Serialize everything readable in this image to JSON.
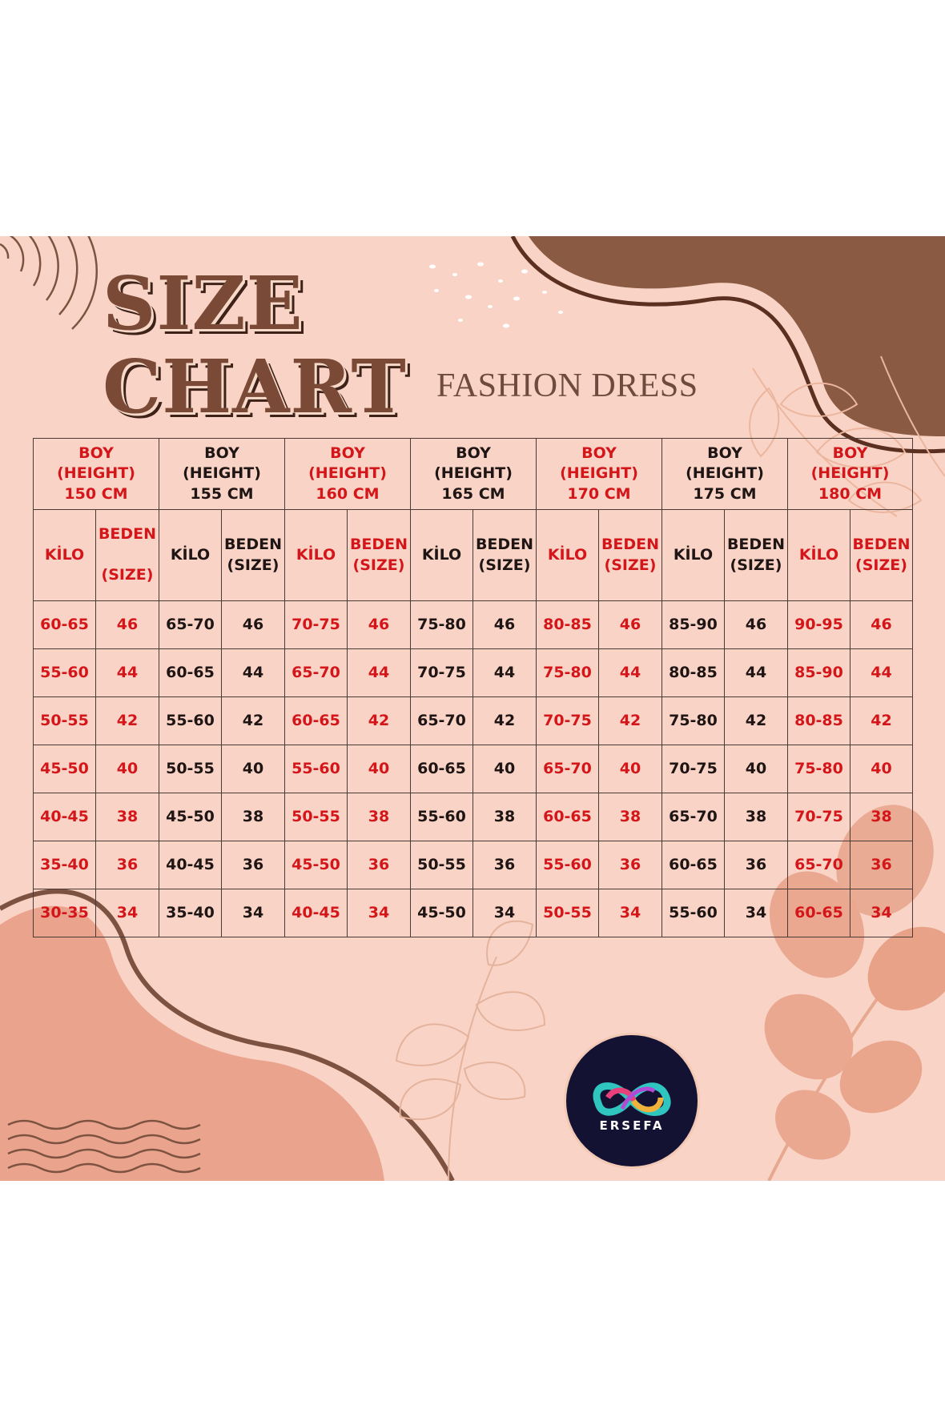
{
  "title": {
    "line1": "SIZE",
    "line2": "CHART"
  },
  "subtitle": "FASHION DRESS",
  "colors": {
    "background": "#f9d4c6",
    "accent_red": "#d4161a",
    "brown": "#7d5240",
    "text_dark": "#1e1514"
  },
  "logo": {
    "text": "ERSEFA",
    "icon": "infinity-swirl-logo-icon"
  },
  "table": {
    "groups": [
      {
        "label": "BOY\n(HEIGHT)\n150 CM",
        "color": "red"
      },
      {
        "label": "BOY\n(HEIGHT)\n155 CM",
        "color": "dark"
      },
      {
        "label": "BOY\n(HEIGHT)\n160 CM",
        "color": "red"
      },
      {
        "label": "BOY\n(HEIGHT)\n165 CM",
        "color": "dark"
      },
      {
        "label": "BOY\n(HEIGHT)\n170 CM",
        "color": "red"
      },
      {
        "label": "BOY\n(HEIGHT)\n175 CM",
        "color": "dark"
      },
      {
        "label": "BOY\n(HEIGHT)\n180 CM",
        "color": "red"
      }
    ],
    "subheaders": [
      {
        "kilo": "KİLO",
        "beden": "BEDEN\n\n(SIZE)"
      },
      {
        "kilo": "KİLO",
        "beden": "BEDEN\n(SIZE)"
      },
      {
        "kilo": "KİLO",
        "beden": "BEDEN\n(SIZE)"
      },
      {
        "kilo": "KİLO",
        "beden": "BEDEN\n(SIZE)"
      },
      {
        "kilo": "KİLO",
        "beden": "BEDEN\n(SIZE)"
      },
      {
        "kilo": "KİLO",
        "beden": "BEDEN\n(SIZE)"
      },
      {
        "kilo": "KİLO",
        "beden": "BEDEN\n(SIZE)"
      }
    ],
    "rows": [
      [
        "60-65",
        "46",
        "65-70",
        "46",
        "70-75",
        "46",
        "75-80",
        "46",
        "80-85",
        "46",
        "85-90",
        "46",
        "90-95",
        "46"
      ],
      [
        "55-60",
        "44",
        "60-65",
        "44",
        "65-70",
        "44",
        "70-75",
        "44",
        "75-80",
        "44",
        "80-85",
        "44",
        "85-90",
        "44"
      ],
      [
        "50-55",
        "42",
        "55-60",
        "42",
        "60-65",
        "42",
        "65-70",
        "42",
        "70-75",
        "42",
        "75-80",
        "42",
        "80-85",
        "42"
      ],
      [
        "45-50",
        "40",
        "50-55",
        "40",
        "55-60",
        "40",
        "60-65",
        "40",
        "65-70",
        "40",
        "70-75",
        "40",
        "75-80",
        "40"
      ],
      [
        "40-45",
        "38",
        "45-50",
        "38",
        "50-55",
        "38",
        "55-60",
        "38",
        "60-65",
        "38",
        "65-70",
        "38",
        "70-75",
        "38"
      ],
      [
        "35-40",
        "36",
        "40-45",
        "36",
        "45-50",
        "36",
        "50-55",
        "36",
        "55-60",
        "36",
        "60-65",
        "36",
        "65-70",
        "36"
      ],
      [
        "30-35",
        "34",
        "35-40",
        "34",
        "40-45",
        "34",
        "45-50",
        "34",
        "50-55",
        "34",
        "55-60",
        "34",
        "60-65",
        "34"
      ]
    ]
  }
}
